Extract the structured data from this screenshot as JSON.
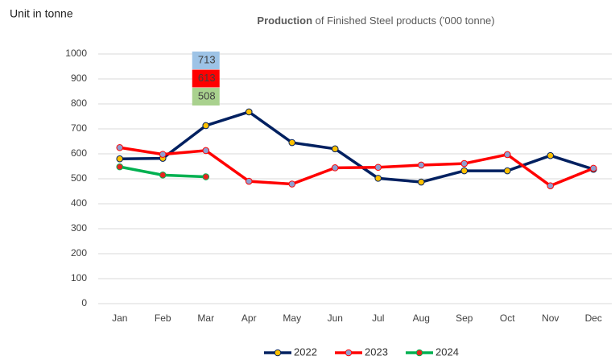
{
  "chart_data": {
    "type": "line",
    "title": [
      "Production",
      "of Finished Steel products ('000 tonne)"
    ],
    "unit_label": "Unit in tonne",
    "categories": [
      "Jan",
      "Feb",
      "Mar",
      "Apr",
      "May",
      "Jun",
      "Jul",
      "Aug",
      "Sep",
      "Oct",
      "Nov",
      "Dec"
    ],
    "series": [
      {
        "name": "2022",
        "color": "#002060",
        "marker_color": "#ffc000",
        "label_color": "#9dc3e6",
        "values": [
          580,
          582,
          713,
          768,
          645,
          620,
          502,
          487,
          532,
          532,
          593,
          538
        ]
      },
      {
        "name": "2023",
        "color": "#ff0000",
        "marker_color": "#8e9fd0",
        "label_color": "#ff0000",
        "values": [
          625,
          598,
          613,
          490,
          479,
          544,
          546,
          555,
          561,
          597,
          472,
          542
        ]
      },
      {
        "name": "2024",
        "color": "#00b050",
        "marker_color": "#e8231e",
        "label_color": "#a9d18e",
        "values": [
          548,
          515,
          508,
          null,
          null,
          null,
          null,
          null,
          null,
          null,
          null,
          null
        ]
      }
    ],
    "ylim": [
      0,
      1000
    ],
    "yticks": [
      0,
      100,
      200,
      300,
      400,
      500,
      600,
      700,
      800,
      900,
      1000
    ],
    "grid": true,
    "legend": "bottom"
  }
}
